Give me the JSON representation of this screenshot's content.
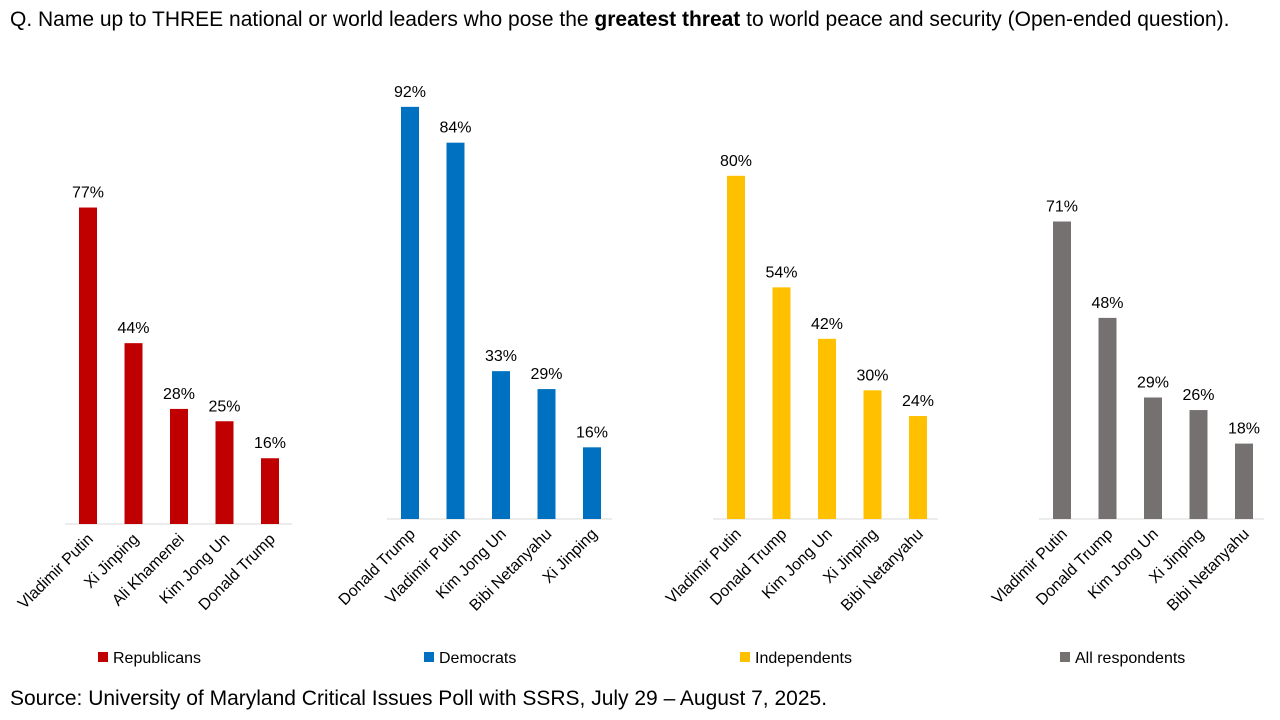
{
  "question": {
    "prefix": "Q. Name up to THREE national or world leaders who pose the ",
    "bold": "greatest threat",
    "suffix": " to world peace and security (Open-ended question)."
  },
  "source": "Source: University of Maryland Critical Issues Poll with SSRS, July 29 – August 7, 2025.",
  "chart_data": [
    {
      "type": "bar",
      "series": [
        {
          "name": "Republicans",
          "color": "#C00000",
          "values": [
            77,
            44,
            28,
            25,
            16
          ],
          "labels": [
            "77%",
            "44%",
            "28%",
            "25%",
            "16%"
          ]
        }
      ],
      "categories": [
        "Vladimir Putin",
        "Xi Jinping",
        "Ali Khamenei",
        "Kim Jong Un",
        "Donald Trump"
      ],
      "ylim": [
        0,
        100
      ],
      "legend": "bottom"
    },
    {
      "type": "bar",
      "series": [
        {
          "name": "Democrats",
          "color": "#0070C0",
          "values": [
            92,
            84,
            33,
            29,
            16
          ],
          "labels": [
            "92%",
            "84%",
            "33%",
            "29%",
            "16%"
          ]
        }
      ],
      "categories": [
        "Donald Trump",
        "Vladimir Putin",
        "Kim Jong Un",
        "Bibi Netanyahu",
        "Xi Jinping"
      ],
      "ylim": [
        0,
        100
      ],
      "legend": "bottom"
    },
    {
      "type": "bar",
      "series": [
        {
          "name": "Independents",
          "color": "#FFC000",
          "values": [
            80,
            54,
            42,
            30,
            24
          ],
          "labels": [
            "80%",
            "54%",
            "42%",
            "30%",
            "24%"
          ]
        }
      ],
      "categories": [
        "Vladimir Putin",
        "Donald Trump",
        "Kim Jong Un",
        "Xi Jinping",
        "Bibi Netanyahu"
      ],
      "ylim": [
        0,
        100
      ],
      "legend": "bottom"
    },
    {
      "type": "bar",
      "series": [
        {
          "name": "All respondents",
          "color": "#767171",
          "values": [
            71,
            48,
            29,
            26,
            18
          ],
          "labels": [
            "71%",
            "48%",
            "29%",
            "26%",
            "18%"
          ]
        }
      ],
      "categories": [
        "Vladimir Putin",
        "Donald Trump",
        "Kim Jong Un",
        "Xi Jinping",
        "Bibi Netanyahu"
      ],
      "ylim": [
        0,
        100
      ],
      "legend": "bottom"
    }
  ]
}
